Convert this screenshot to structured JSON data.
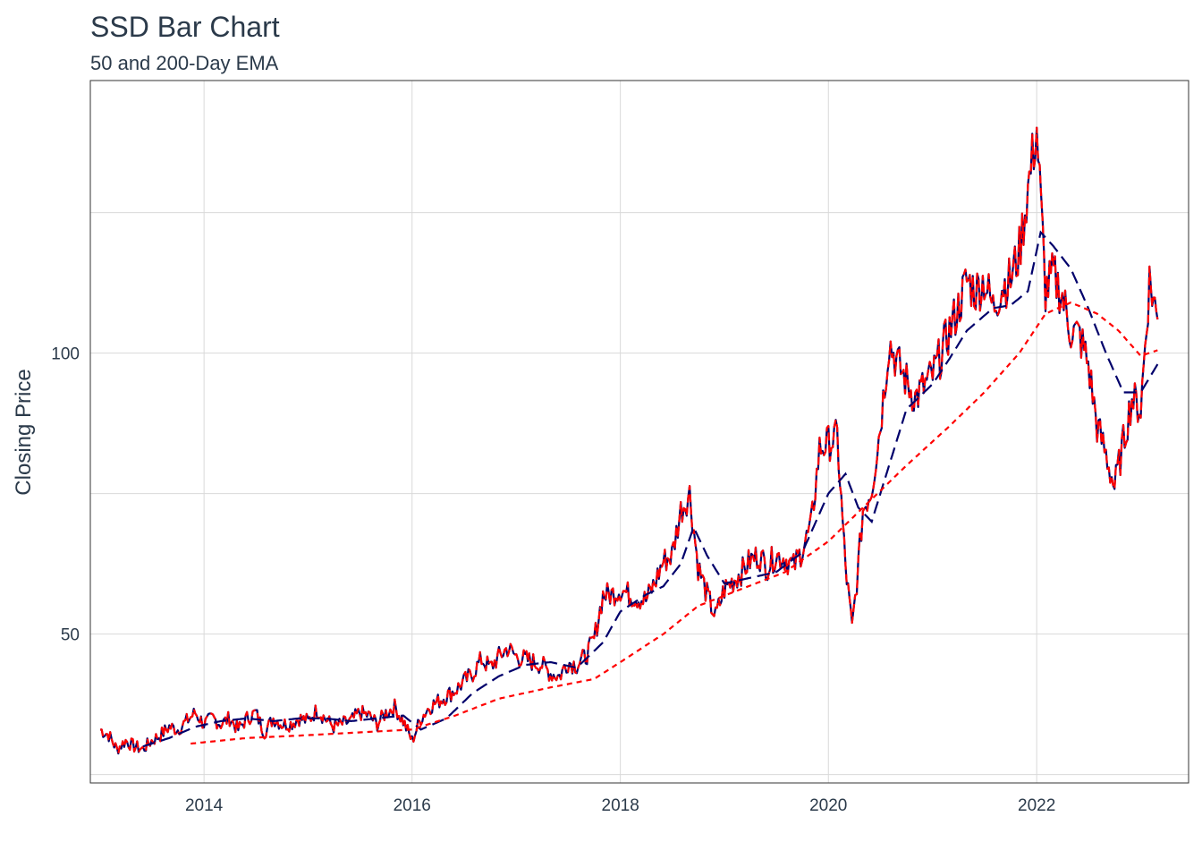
{
  "chart_data": {
    "type": "line",
    "title": "SSD Bar Chart",
    "subtitle": "50 and 200-Day EMA",
    "xlabel": "",
    "ylabel": "Closing Price",
    "x_ticks": [
      "2014",
      "2016",
      "2018",
      "2020",
      "2022"
    ],
    "y_ticks": [
      "50",
      "100"
    ],
    "xlim": [
      "2012-11-28",
      "2023-06-18"
    ],
    "ylim": [
      23.5,
      148.5
    ],
    "grid": true,
    "legend": "none",
    "series": [
      {
        "role": "price",
        "style": "solid-red-navy",
        "color": "#ff0000",
        "color_alt": "#00006b",
        "x": [
          "2013-01-02",
          "2013-02-01",
          "2013-03-01",
          "2013-04-01",
          "2013-05-01",
          "2013-06-01",
          "2013-07-01",
          "2013-08-01",
          "2013-09-01",
          "2013-10-01",
          "2013-11-01",
          "2013-12-01",
          "2014-01-01",
          "2014-02-01",
          "2014-03-01",
          "2014-04-01",
          "2014-05-01",
          "2014-06-01",
          "2014-07-01",
          "2014-08-01",
          "2014-09-01",
          "2014-10-01",
          "2014-11-01",
          "2014-12-01",
          "2015-01-01",
          "2015-02-01",
          "2015-03-01",
          "2015-04-01",
          "2015-05-01",
          "2015-06-01",
          "2015-07-01",
          "2015-08-01",
          "2015-09-01",
          "2015-10-01",
          "2015-11-01",
          "2015-12-01",
          "2016-01-01",
          "2016-02-01",
          "2016-03-01",
          "2016-04-01",
          "2016-05-01",
          "2016-06-01",
          "2016-07-01",
          "2016-08-01",
          "2016-09-01",
          "2016-10-01",
          "2016-11-01",
          "2016-12-01",
          "2017-01-01",
          "2017-02-01",
          "2017-03-01",
          "2017-04-01",
          "2017-05-01",
          "2017-06-01",
          "2017-07-01",
          "2017-08-01",
          "2017-09-01",
          "2017-10-01",
          "2017-11-01",
          "2017-12-01",
          "2018-01-01",
          "2018-02-01",
          "2018-03-01",
          "2018-04-01",
          "2018-05-01",
          "2018-06-01",
          "2018-07-01",
          "2018-08-01",
          "2018-09-01",
          "2018-10-01",
          "2018-11-01",
          "2018-12-01",
          "2019-01-01",
          "2019-02-01",
          "2019-03-01",
          "2019-04-01",
          "2019-05-01",
          "2019-06-01",
          "2019-07-01",
          "2019-08-01",
          "2019-09-01",
          "2019-10-01",
          "2019-11-01",
          "2019-12-01",
          "2020-01-01",
          "2020-02-01",
          "2020-03-01",
          "2020-03-24",
          "2020-04-15",
          "2020-05-01",
          "2020-06-01",
          "2020-07-01",
          "2020-08-01",
          "2020-09-01",
          "2020-10-01",
          "2020-11-01",
          "2020-12-01",
          "2021-01-01",
          "2021-02-01",
          "2021-03-01",
          "2021-04-01",
          "2021-05-01",
          "2021-06-01",
          "2021-07-01",
          "2021-08-01",
          "2021-09-01",
          "2021-10-01",
          "2021-11-01",
          "2021-12-01",
          "2022-01-01",
          "2022-02-01",
          "2022-03-01",
          "2022-04-01",
          "2022-05-01",
          "2022-06-01",
          "2022-07-01",
          "2022-08-01",
          "2022-09-01",
          "2022-10-01",
          "2022-11-01",
          "2022-12-01",
          "2023-01-01",
          "2023-02-01",
          "2023-03-01"
        ],
        "values": [
          33.0,
          32.0,
          29.5,
          31.0,
          30.0,
          29.5,
          31.0,
          32.0,
          33.5,
          33.0,
          34.5,
          36.0,
          34.0,
          35.0,
          34.0,
          35.0,
          33.0,
          35.0,
          36.0,
          32.5,
          35.0,
          34.0,
          34.0,
          35.0,
          34.5,
          36.5,
          35.0,
          33.5,
          34.0,
          34.5,
          36.0,
          35.5,
          34.0,
          36.0,
          37.0,
          34.5,
          31.0,
          35.0,
          37.0,
          38.0,
          39.0,
          40.0,
          41.5,
          43.0,
          45.5,
          44.0,
          46.0,
          47.5,
          46.0,
          45.5,
          45.0,
          44.5,
          43.0,
          42.5,
          45.0,
          44.5,
          46.0,
          49.0,
          57.0,
          57.0,
          58.0,
          57.0,
          56.5,
          56.0,
          59.0,
          63.0,
          64.0,
          72.0,
          75.0,
          62.0,
          57.0,
          53.0,
          58.0,
          59.5,
          61.0,
          63.0,
          64.0,
          62.0,
          64.0,
          63.5,
          62.0,
          65.0,
          69.0,
          83.0,
          84.0,
          85.0,
          62.0,
          51.0,
          62.0,
          72.0,
          76.0,
          87.0,
          102.0,
          98.0,
          95.0,
          92.0,
          94.0,
          96.0,
          100.0,
          104.0,
          108.0,
          113.0,
          111.0,
          113.0,
          108.0,
          112.0,
          113.0,
          118.0,
          129.0,
          140.0,
          111.0,
          114.0,
          110.0,
          104.0,
          103.0,
          98.0,
          87.0,
          82.0,
          76.0,
          84.0,
          92.0,
          90.0,
          113.0,
          106.0
        ]
      },
      {
        "role": "EMA 50",
        "style": "dashed",
        "color": "#00006b",
        "x": [
          "2013-06-01",
          "2013-09-01",
          "2013-12-01",
          "2014-03-01",
          "2014-06-01",
          "2014-09-01",
          "2014-12-01",
          "2015-03-01",
          "2015-06-01",
          "2015-09-01",
          "2015-12-01",
          "2016-02-01",
          "2016-05-01",
          "2016-08-01",
          "2016-11-01",
          "2017-02-01",
          "2017-05-01",
          "2017-08-01",
          "2017-11-01",
          "2018-01-01",
          "2018-04-01",
          "2018-06-01",
          "2018-08-01",
          "2018-09-15",
          "2018-11-01",
          "2019-01-01",
          "2019-04-01",
          "2019-07-01",
          "2019-10-01",
          "2020-01-01",
          "2020-03-01",
          "2020-04-15",
          "2020-06-01",
          "2020-08-01",
          "2020-10-01",
          "2021-01-01",
          "2021-03-01",
          "2021-05-01",
          "2021-08-01",
          "2021-10-01",
          "2021-12-01",
          "2022-01-15",
          "2022-03-01",
          "2022-05-01",
          "2022-07-01",
          "2022-09-01",
          "2022-11-01",
          "2023-01-01",
          "2023-03-01"
        ],
        "values": [
          30.0,
          31.5,
          33.5,
          34.5,
          35.0,
          34.5,
          35.0,
          35.0,
          34.5,
          35.0,
          35.5,
          33.0,
          35.0,
          39.5,
          42.5,
          44.5,
          45.0,
          44.0,
          48.5,
          54.0,
          57.0,
          58.5,
          62.5,
          69.0,
          64.0,
          59.0,
          60.0,
          61.0,
          64.5,
          75.0,
          78.5,
          72.5,
          70.0,
          80.0,
          90.0,
          94.5,
          99.0,
          104.0,
          108.0,
          108.5,
          111.0,
          121.5,
          119.0,
          115.0,
          108.0,
          100.0,
          93.0,
          93.0,
          98.0
        ]
      },
      {
        "role": "EMA 200",
        "style": "dashed",
        "color": "#ff0000",
        "x": [
          "2013-11-15",
          "2014-06-01",
          "2015-01-01",
          "2015-07-01",
          "2016-01-01",
          "2016-06-01",
          "2016-11-01",
          "2017-05-01",
          "2017-10-01",
          "2018-01-01",
          "2018-06-01",
          "2018-10-01",
          "2019-03-01",
          "2019-08-01",
          "2020-01-01",
          "2020-06-01",
          "2020-10-01",
          "2021-03-01",
          "2021-07-01",
          "2021-11-01",
          "2022-02-01",
          "2022-05-01",
          "2022-08-01",
          "2022-10-15",
          "2023-01-01",
          "2023-03-01"
        ],
        "values": [
          30.5,
          31.5,
          32.0,
          32.5,
          33.0,
          35.5,
          38.5,
          40.5,
          42.0,
          45.0,
          50.0,
          55.0,
          58.0,
          61.0,
          66.5,
          74.0,
          80.0,
          87.0,
          93.0,
          100.0,
          107.0,
          109.0,
          107.0,
          104.0,
          99.5,
          100.5
        ]
      }
    ]
  }
}
